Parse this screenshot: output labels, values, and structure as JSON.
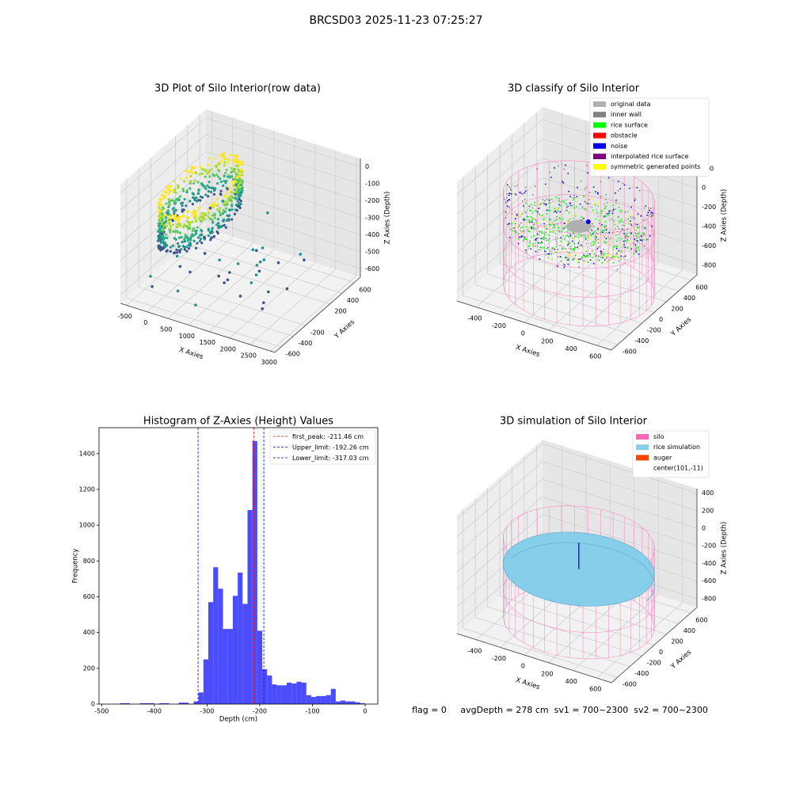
{
  "title": "BRCSD03 2025-11-23 07:25:27",
  "footer": "flag = 0     avgDepth = 278 cm  sv1 = 700~2300  sv2 = 700~2300",
  "chart_data": [
    {
      "type": "scatter3d",
      "title": "3D Plot of Silo Interior(row data)",
      "x_label": "X Axies",
      "y_label": "Y Axies",
      "z_label": "Z Axies (Depth)",
      "xlim": [
        -650,
        3100
      ],
      "xticks": [
        -500,
        0,
        500,
        1000,
        1500,
        2000,
        2500,
        3000
      ],
      "ylim": [
        -700,
        700
      ],
      "yticks": [
        -600,
        -400,
        -200,
        200,
        400,
        600
      ],
      "zlim": [
        -650,
        50
      ],
      "zticks": [
        -600,
        -500,
        -400,
        -300,
        -200,
        -100,
        0
      ]
    },
    {
      "type": "scatter3d",
      "title": "3D classify of Silo Interior",
      "x_label": "X Axies",
      "y_label": "Y Axies",
      "z_label": "Z Axies (Depth)",
      "xlim": [
        -560,
        720
      ],
      "xticks": [
        -400,
        -200,
        0,
        200,
        400,
        600
      ],
      "ylim": [
        -700,
        700
      ],
      "yticks": [
        -600,
        -400,
        -200,
        0,
        200,
        400,
        600
      ],
      "zlim": [
        -900,
        330
      ],
      "zticks": [
        -800,
        -600,
        -400,
        -200,
        0,
        200
      ],
      "series": [
        {
          "name": "original data",
          "color": "#b0b0b0"
        },
        {
          "name": "inner wall",
          "color": "#808080"
        },
        {
          "name": "rice surface",
          "color": "#00ff00"
        },
        {
          "name": "obstacle",
          "color": "#ff0000"
        },
        {
          "name": "noise",
          "color": "#0000ee"
        },
        {
          "name": "interpolated rice surface",
          "color": "#800080"
        },
        {
          "name": "symmetric generated points",
          "color": "#ffff00"
        }
      ]
    },
    {
      "type": "histogram",
      "title": "Histogram of Z-Axies (Height) Values",
      "x_label": "Depth (cm)",
      "y_label": "Frequency",
      "color": "#4c4cff",
      "bins": [
        -465,
        -455.7,
        -446.4,
        -437.1,
        -427.8,
        -418.5,
        -409.2,
        -399.9,
        -390.6,
        -381.3,
        -372,
        -362.7,
        -353.4,
        -344.1,
        -334.8,
        -325.5,
        -316.2,
        -306.9,
        -297.6,
        -288.3,
        -279,
        -269.7,
        -260.4,
        -251.1,
        -241.8,
        -232.5,
        -223.2,
        -213.9,
        -204.6,
        -195.3,
        -186,
        -176.7,
        -167.4,
        -158.1,
        -148.8,
        -139.5,
        -130.2,
        -120.9,
        -111.6,
        -102.3,
        -93,
        -83.7,
        -74.4,
        -65.1,
        -55.8,
        -46.5,
        -37.2,
        -27.9,
        -18.6,
        -9.3,
        0
      ],
      "values": [
        5,
        5,
        0,
        0,
        5,
        5,
        5,
        0,
        5,
        5,
        0,
        0,
        8,
        8,
        0,
        15,
        65,
        250,
        570,
        765,
        645,
        420,
        420,
        605,
        735,
        560,
        1085,
        1470,
        410,
        195,
        160,
        110,
        105,
        105,
        120,
        115,
        125,
        120,
        50,
        40,
        45,
        45,
        50,
        85,
        15,
        20,
        15,
        15,
        10,
        5
      ],
      "vlines": [
        {
          "name": "first_peak: -211.46 cm",
          "value": -211.46,
          "color": "#ff0000"
        },
        {
          "name": "Upper_limit: -192.26 cm",
          "value": -192.26,
          "color": "#0000ff"
        },
        {
          "name": "Lower_limit: -317.03 cm",
          "value": -317.03,
          "color": "#0000ff"
        }
      ],
      "xlim": [
        -505,
        24
      ],
      "xticks": [
        -500,
        -400,
        -300,
        -200,
        -100,
        0
      ],
      "ylim": [
        0,
        1545
      ],
      "yticks": [
        0,
        200,
        400,
        600,
        800,
        1000,
        1200,
        1400
      ]
    },
    {
      "type": "scatter3d",
      "title": "3D simulation of Silo Interior",
      "x_label": "X Axies",
      "y_label": "Y Axies",
      "z_label": "Z Axies (Depth)",
      "xlim": [
        -560,
        720
      ],
      "xticks": [
        -400,
        -200,
        0,
        200,
        400,
        600
      ],
      "ylim": [
        -700,
        700
      ],
      "yticks": [
        -600,
        -400,
        -200,
        0,
        200,
        400,
        600
      ],
      "zlim": [
        -900,
        450
      ],
      "zticks": [
        -800,
        -600,
        -400,
        -200,
        0,
        200,
        400
      ],
      "series": [
        {
          "name": "silo",
          "color": "#ff69b4"
        },
        {
          "name": "rice simulation",
          "color": "#87ceeb"
        },
        {
          "name": "auger",
          "color": "#ff4500"
        },
        {
          "name": "center(101,-11)",
          "color": "none"
        }
      ]
    }
  ]
}
